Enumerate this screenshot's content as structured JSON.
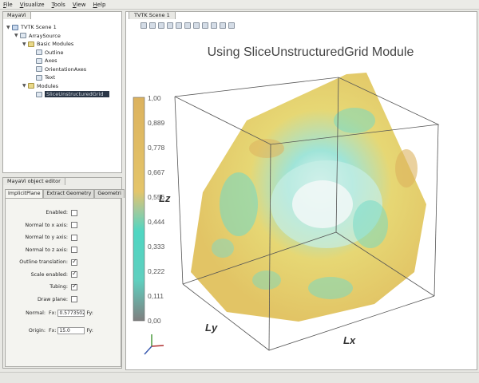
{
  "menu": [
    "File",
    "Visualize",
    "Tools",
    "View",
    "Help"
  ],
  "tree_panel": {
    "tab": "MayaVi",
    "items": [
      {
        "label": "TVTK Scene 1",
        "level": 0,
        "icon": "scene-icon",
        "toggle": "▼"
      },
      {
        "label": "ArraySource",
        "level": 1,
        "icon": "source-icon",
        "toggle": "▼"
      },
      {
        "label": "Basic Modules",
        "level": 2,
        "icon": "folder-icon",
        "toggle": "▼"
      },
      {
        "label": "Outline",
        "level": 3,
        "icon": "module-icon",
        "toggle": ""
      },
      {
        "label": "Axes",
        "level": 3,
        "icon": "module-icon",
        "toggle": ""
      },
      {
        "label": "OrientationAxes",
        "level": 3,
        "icon": "module-icon",
        "toggle": ""
      },
      {
        "label": "Text",
        "level": 3,
        "icon": "module-icon",
        "toggle": ""
      },
      {
        "label": "Modules",
        "level": 2,
        "icon": "folder-icon",
        "toggle": "▼"
      },
      {
        "label": "SliceUnstructuredGrid",
        "level": 3,
        "icon": "module-icon",
        "toggle": "",
        "selected": true
      }
    ]
  },
  "editor": {
    "title": "MayaVi object editor",
    "tabs": [
      "ImplicitPlane",
      "Extract Geometry",
      "Geometri"
    ],
    "fields": [
      {
        "label": "Enabled:",
        "checked": false
      },
      {
        "label": "Normal to x axis:",
        "checked": false
      },
      {
        "label": "Normal to y axis:",
        "checked": false
      },
      {
        "label": "Normal to z axis:",
        "checked": false
      },
      {
        "label": "Outline translation:",
        "checked": true
      },
      {
        "label": "Scale enabled:",
        "checked": true
      },
      {
        "label": "Tubing:",
        "checked": true
      },
      {
        "label": "Draw plane:",
        "checked": false
      }
    ],
    "normal": {
      "label": "Normal:",
      "x_label": "Fx:",
      "x_value": "0.5773502",
      "y_label": "Fy:"
    },
    "origin": {
      "label": "Origin:",
      "x_label": "Fx:",
      "x_value": "15.0",
      "y_label": "Fy:"
    }
  },
  "scene": {
    "tab": "TVTK Scene 1",
    "title": "Using SliceUnstructuredGrid Module",
    "axis_labels": {
      "x": "Lx",
      "y": "Ly",
      "z": "Lz"
    },
    "colorbar_labels": [
      "1,00",
      "0,889",
      "0,778",
      "0,667",
      "0,556",
      "0,444",
      "0,333",
      "0,222",
      "0,111",
      "0,00"
    ],
    "colors": {
      "yellow": "#ecd36a",
      "orange": "#dcb25e",
      "teal": "#4fd6c2",
      "grey": "#7f7f7f"
    }
  }
}
